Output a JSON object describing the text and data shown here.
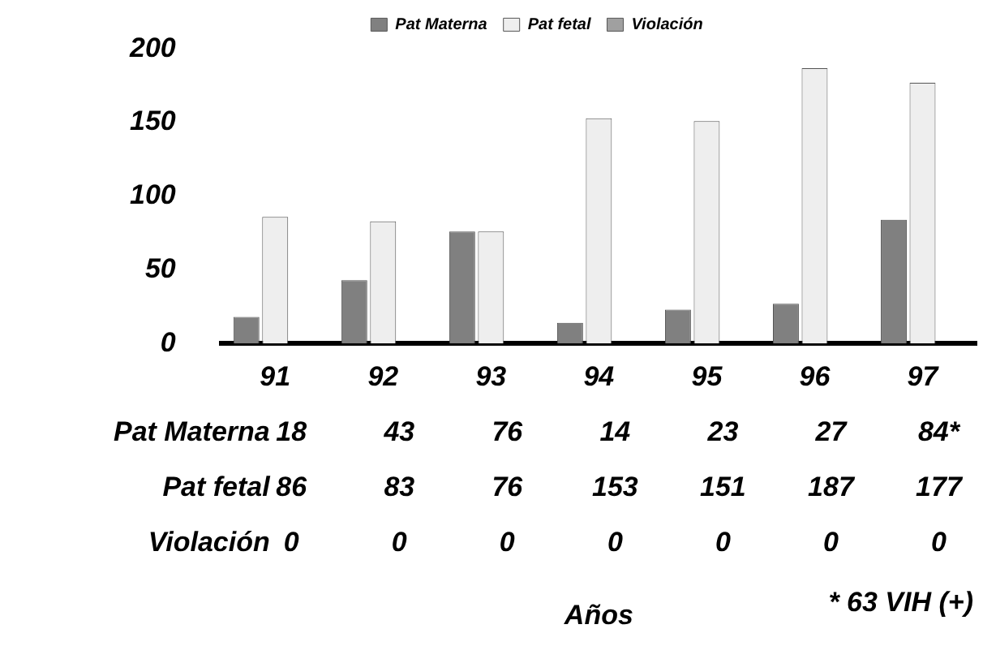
{
  "chart_data": {
    "type": "bar",
    "categories": [
      "91",
      "92",
      "93",
      "94",
      "95",
      "96",
      "97"
    ],
    "ylim": [
      0,
      200
    ],
    "yticks": [
      0,
      50,
      100,
      150,
      200
    ],
    "grid": false,
    "legend": "top",
    "series": [
      {
        "name": "Pat Materna",
        "color": "#808080",
        "values": [
          18,
          43,
          76,
          14,
          23,
          27,
          84
        ],
        "value_labels": [
          "18",
          "43",
          "76",
          "14",
          "23",
          "27",
          "84*"
        ]
      },
      {
        "name": "Pat fetal",
        "color": "#eeeeee",
        "values": [
          86,
          83,
          76,
          153,
          151,
          187,
          177
        ],
        "value_labels": [
          "86",
          "83",
          "76",
          "153",
          "151",
          "187",
          "177"
        ]
      },
      {
        "name": "Violación",
        "color": "#a0a0a0",
        "values": [
          0,
          0,
          0,
          0,
          0,
          0,
          0
        ],
        "value_labels": [
          "0",
          "0",
          "0",
          "0",
          "0",
          "0",
          "0"
        ]
      }
    ],
    "annotations": [
      "Años",
      "* 63 VIH (+)"
    ]
  }
}
